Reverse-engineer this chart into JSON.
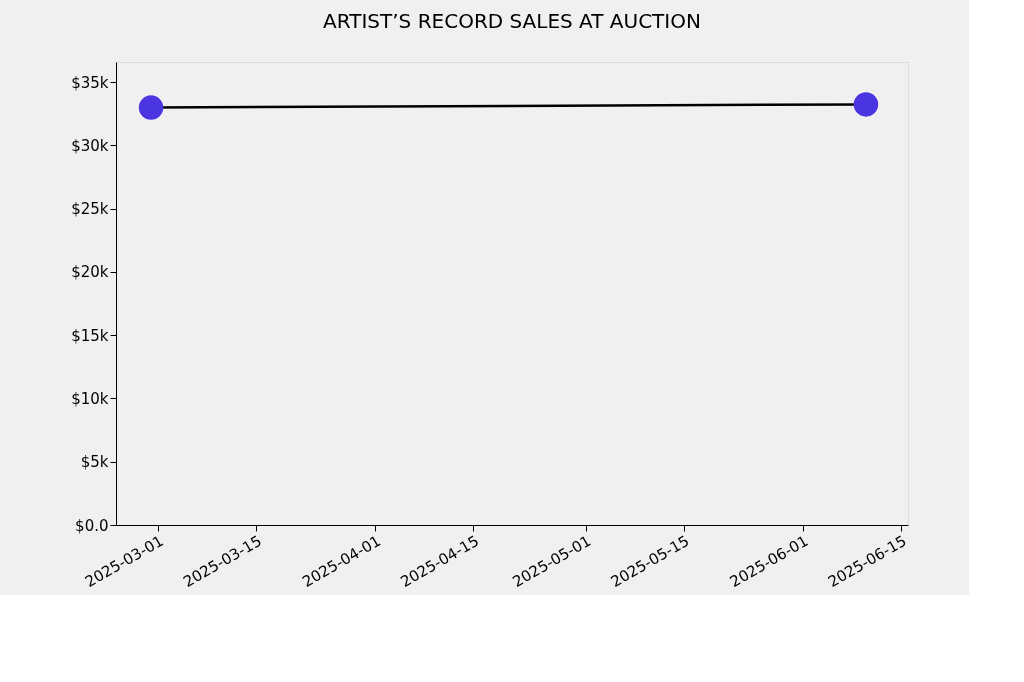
{
  "chart_data": {
    "type": "line",
    "title": "ARTIST’S RECORD SALES AT AUCTION",
    "x": [
      "2025-02-28",
      "2025-06-10"
    ],
    "series": [
      {
        "color": "#4b35e0",
        "values": [
          33000,
          33250
        ]
      }
    ],
    "marker": "circle",
    "xlim": [
      "2025-02-23",
      "2025-06-16"
    ],
    "xticks": [
      "2025-03-01",
      "2025-03-15",
      "2025-04-01",
      "2025-04-15",
      "2025-05-01",
      "2025-05-15",
      "2025-06-01",
      "2025-06-15"
    ],
    "ylim": [
      0,
      36600
    ],
    "yticks": [
      {
        "value": 0,
        "label": "$0.0"
      },
      {
        "value": 5000,
        "label": "$5k"
      },
      {
        "value": 10000,
        "label": "$10k"
      },
      {
        "value": 15000,
        "label": "$15k"
      },
      {
        "value": 20000,
        "label": "$20k"
      },
      {
        "value": 25000,
        "label": "$25k"
      },
      {
        "value": 30000,
        "label": "$30k"
      },
      {
        "value": 35000,
        "label": "$35k"
      }
    ],
    "grid": false
  }
}
